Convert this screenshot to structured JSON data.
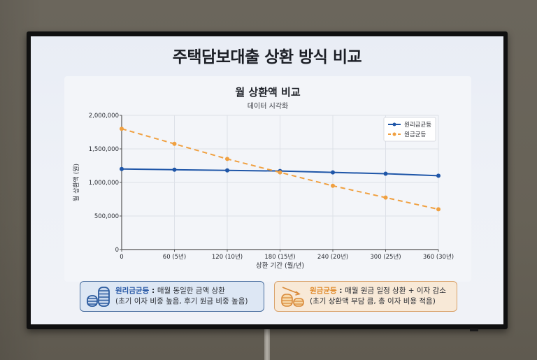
{
  "slide": {
    "title": "주택담보대출 상환 방식 비교"
  },
  "chart": {
    "title": "월 상환액 비교",
    "subtitle": "데이터 시각화",
    "ylabel": "월 상환액 (원)",
    "xlabel": "상환 기간 (월/년)",
    "y_ticks": [
      "0",
      "500,000",
      "1,000,000",
      "1,500,000",
      "2,000,000"
    ],
    "x_ticks": [
      "0",
      "60 (5년)",
      "120 (10년)",
      "180 (15년)",
      "240 (20년)",
      "300 (25년)",
      "360 (30년)"
    ],
    "legend": [
      {
        "label": "원리금균등",
        "color": "#1f56a8"
      },
      {
        "label": "원금균등",
        "color": "#f0a040"
      }
    ]
  },
  "chart_data": {
    "type": "line",
    "title": "월 상환액 비교",
    "subtitle": "데이터 시각화",
    "xlabel": "상환 기간 (월/년)",
    "ylabel": "월 상환액 (원)",
    "x": [
      0,
      60,
      120,
      180,
      240,
      300,
      360
    ],
    "categories": [
      "0",
      "60 (5년)",
      "120 (10년)",
      "180 (15년)",
      "240 (20년)",
      "300 (25년)",
      "360 (30년)"
    ],
    "series": [
      {
        "name": "원리금균등",
        "style": "solid",
        "marker": "circle",
        "color": "#1f56a8",
        "values": [
          1200000,
          1190000,
          1180000,
          1170000,
          1150000,
          1130000,
          1100000
        ]
      },
      {
        "name": "원금균등",
        "style": "dashed",
        "marker": "circle",
        "color": "#f0a040",
        "values": [
          1800000,
          1575000,
          1350000,
          1150000,
          950000,
          775000,
          600000
        ]
      }
    ],
    "ylim": [
      0,
      2000000
    ],
    "xlim": [
      0,
      360
    ],
    "grid": true,
    "legend_position": "upper right"
  },
  "info_boxes": [
    {
      "keyword": "원리금균등",
      "separator": " : ",
      "line1": "매월 동일한 금액 상환",
      "line2": "(초기 이자 비중 높음, 후기 원금 비중 높음)",
      "icon": "coin-stack-icon"
    },
    {
      "keyword": "원금균등",
      "separator": " : ",
      "line1": "매월 원금 일정 상환 + 이자 감소",
      "line2": "(초기 상환액 부담 큼, 총 이자 비용 적음)",
      "icon": "coin-decrease-icon"
    }
  ]
}
